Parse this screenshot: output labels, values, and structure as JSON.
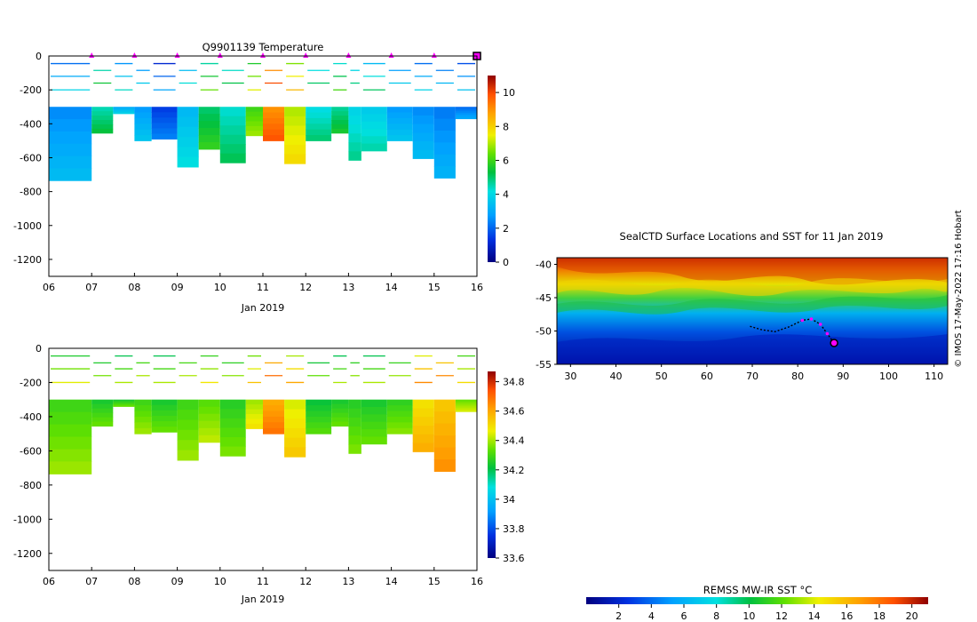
{
  "chart_data": [
    {
      "type": "heatmap",
      "title": "Q9901139  Temperature",
      "xlabel": "Jan 2019",
      "ylabel": "",
      "x_ticks": [
        "06",
        "07",
        "08",
        "09",
        "10",
        "11",
        "12",
        "13",
        "14",
        "15",
        "16"
      ],
      "y_ticks": [
        "0",
        "-200",
        "-400",
        "-600",
        "-800",
        "-1000",
        "-1200"
      ],
      "xlim": [
        6,
        16
      ],
      "ylim": [
        -1300,
        0
      ],
      "colorbar_ticks": [
        "10",
        "8",
        "6",
        "4",
        "2",
        "0"
      ],
      "colorbar_range": [
        0,
        11
      ],
      "profiles": [
        {
          "t": 6.0,
          "bottom": -735,
          "value": 3.0
        },
        {
          "t": 7.0,
          "bottom": -455,
          "value": 5.0
        },
        {
          "t": 7.5,
          "bottom": -340,
          "value": 3.5
        },
        {
          "t": 8.0,
          "bottom": -500,
          "value": 3.2
        },
        {
          "t": 8.4,
          "bottom": -490,
          "value": 2.0
        },
        {
          "t": 9.0,
          "bottom": -655,
          "value": 3.8
        },
        {
          "t": 9.5,
          "bottom": -550,
          "value": 5.5
        },
        {
          "t": 10.0,
          "bottom": -630,
          "value": 4.8
        },
        {
          "t": 10.6,
          "bottom": -470,
          "value": 6.5
        },
        {
          "t": 11.0,
          "bottom": -500,
          "value": 9.5
        },
        {
          "t": 11.5,
          "bottom": -635,
          "value": 7.5
        },
        {
          "t": 12.0,
          "bottom": -500,
          "value": 4.6
        },
        {
          "t": 12.6,
          "bottom": -455,
          "value": 5.2
        },
        {
          "t": 13.0,
          "bottom": -615,
          "value": 4.4
        },
        {
          "t": 13.3,
          "bottom": -560,
          "value": 4.2
        },
        {
          "t": 13.9,
          "bottom": -500,
          "value": 3.2
        },
        {
          "t": 14.5,
          "bottom": -605,
          "value": 3.0
        },
        {
          "t": 15.0,
          "bottom": -720,
          "value": 2.8
        },
        {
          "t": 15.5,
          "bottom": -370,
          "value": 2.6
        }
      ],
      "surface_markers": [
        "07",
        "08",
        "09",
        "10",
        "11",
        "12",
        "13",
        "14",
        "15"
      ]
    },
    {
      "type": "heatmap",
      "title": "",
      "xlabel": "Jan 2019",
      "ylabel": "",
      "x_ticks": [
        "06",
        "07",
        "08",
        "09",
        "10",
        "11",
        "12",
        "13",
        "14",
        "15",
        "16"
      ],
      "y_ticks": [
        "0",
        "-200",
        "-400",
        "-600",
        "-800",
        "-1000",
        "-1200"
      ],
      "xlim": [
        6,
        16
      ],
      "ylim": [
        -1300,
        0
      ],
      "colorbar_ticks": [
        "34.8",
        "34.6",
        "34.4",
        "34.2",
        "34",
        "33.8",
        "33.6"
      ],
      "colorbar_range": [
        33.6,
        34.87
      ],
      "profiles": [
        {
          "t": 6.0,
          "bottom": -735,
          "value": 34.35
        },
        {
          "t": 7.0,
          "bottom": -455,
          "value": 34.3
        },
        {
          "t": 7.5,
          "bottom": -340,
          "value": 34.3
        },
        {
          "t": 8.0,
          "bottom": -500,
          "value": 34.35
        },
        {
          "t": 8.4,
          "bottom": -490,
          "value": 34.3
        },
        {
          "t": 9.0,
          "bottom": -655,
          "value": 34.35
        },
        {
          "t": 9.5,
          "bottom": -550,
          "value": 34.38
        },
        {
          "t": 10.0,
          "bottom": -630,
          "value": 34.32
        },
        {
          "t": 10.6,
          "bottom": -470,
          "value": 34.45
        },
        {
          "t": 11.0,
          "bottom": -500,
          "value": 34.65
        },
        {
          "t": 11.5,
          "bottom": -635,
          "value": 34.5
        },
        {
          "t": 12.0,
          "bottom": -500,
          "value": 34.28
        },
        {
          "t": 12.6,
          "bottom": -455,
          "value": 34.3
        },
        {
          "t": 13.0,
          "bottom": -615,
          "value": 34.32
        },
        {
          "t": 13.3,
          "bottom": -560,
          "value": 34.3
        },
        {
          "t": 13.9,
          "bottom": -500,
          "value": 34.33
        },
        {
          "t": 14.5,
          "bottom": -605,
          "value": 34.55
        },
        {
          "t": 15.0,
          "bottom": -720,
          "value": 34.6
        },
        {
          "t": 15.5,
          "bottom": -370,
          "value": 34.4
        }
      ]
    },
    {
      "type": "heatmap",
      "title": "SealCTD Surface Locations and SST for 11 Jan 2019",
      "xlabel": "",
      "ylabel": "",
      "x_ticks": [
        "30",
        "40",
        "50",
        "60",
        "70",
        "80",
        "90",
        "100",
        "110"
      ],
      "y_ticks": [
        "-40",
        "-45",
        "-50",
        "-55"
      ],
      "xlim": [
        27,
        113
      ],
      "ylim": [
        -55,
        -39
      ],
      "colorbar_label": "REMSS MW-IR SST °C",
      "colorbar_ticks": [
        "2",
        "4",
        "6",
        "8",
        "10",
        "12",
        "14",
        "16",
        "18",
        "20"
      ],
      "colorbar_range": [
        0,
        21
      ],
      "track": [
        {
          "lon": 69.5,
          "lat": -49.3
        },
        {
          "lon": 72,
          "lat": -49.8
        },
        {
          "lon": 75,
          "lat": -50.1
        },
        {
          "lon": 78,
          "lat": -49.4
        },
        {
          "lon": 81,
          "lat": -48.4
        },
        {
          "lon": 83,
          "lat": -48.2
        },
        {
          "lon": 85,
          "lat": -49.0
        },
        {
          "lon": 86.5,
          "lat": -50.4
        },
        {
          "lon": 88,
          "lat": -51.8
        }
      ],
      "current_position": {
        "lon": 88,
        "lat": -51.8
      },
      "watermark": "© IMOS 17-May-2022 17:16 Hobart"
    }
  ]
}
